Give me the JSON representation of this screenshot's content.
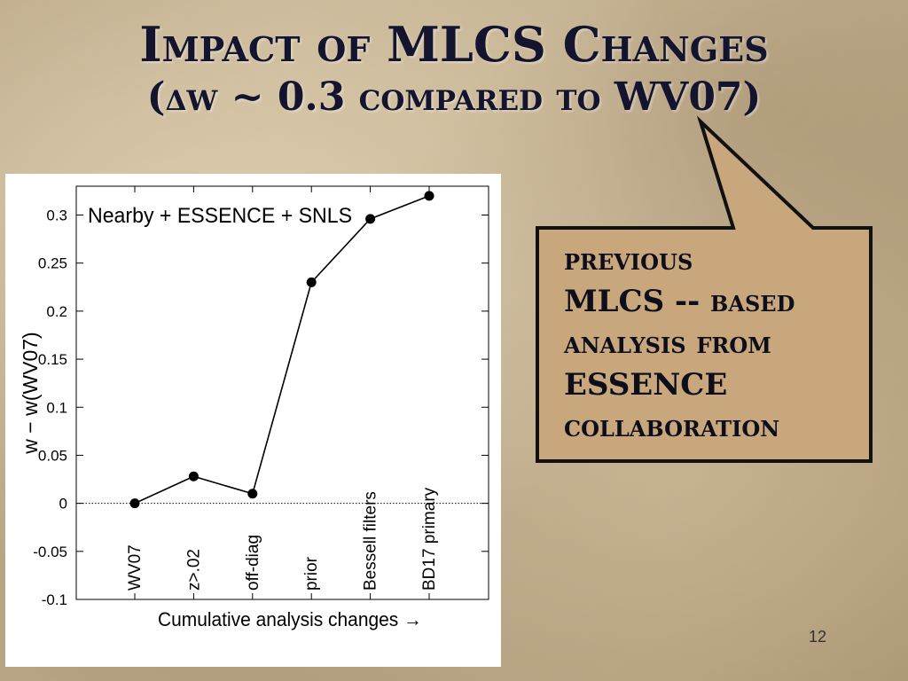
{
  "slide": {
    "title": "Impact of MLCS Changes",
    "subtitle": "(δw ~ 0.3 compared to WV07)",
    "page_number": "12"
  },
  "callout": {
    "lines": [
      "previous",
      "MLCS -- based",
      "analysis from",
      "ESSENCE",
      "collaboration"
    ],
    "fill": "#c9a77c",
    "border": "#111111"
  },
  "chart_data": {
    "type": "line",
    "title": "Nearby + ESSENCE + SNLS",
    "xlabel": "Cumulative analysis changes →",
    "ylabel": "w − w(WV07)",
    "categories": [
      "WV07",
      "z>.02",
      "off-diag",
      "prior",
      "Bessell filters",
      "BD17 primary"
    ],
    "series": [
      {
        "values": [
          0.0,
          0.028,
          0.01,
          0.23,
          0.296,
          0.32
        ]
      }
    ],
    "ylim": [
      -0.1,
      0.33
    ],
    "yticks": [
      -0.1,
      -0.05,
      0,
      0.05,
      0.1,
      0.15,
      0.2,
      0.25,
      0.3
    ],
    "ytick_labels": [
      "-0.1",
      "-0.05",
      "0",
      "0.05",
      "0.1",
      "0.15",
      "0.2",
      "0.25",
      "0.3"
    ],
    "zero_line": "dotted",
    "grid": false
  }
}
